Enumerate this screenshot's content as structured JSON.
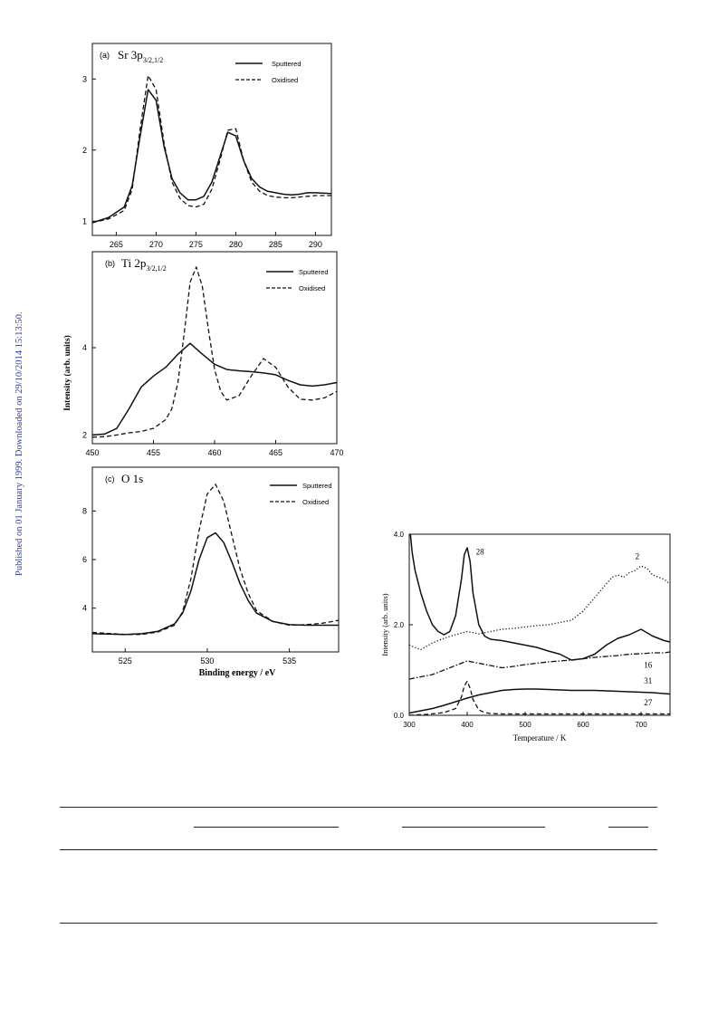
{
  "side_note": "Published on 01 January 1999. Downloaded on 29/10/2014 15:13:50.",
  "figure_left": {
    "shared_ylabel": "Intensity (arb. units)",
    "shared_xlabel": "Binding energy / eV",
    "panels": [
      {
        "label": "(a)",
        "title": "Sr 3p",
        "title_sub": "3/2,1/2",
        "legend": [
          "Sputtered",
          "Oxidised"
        ]
      },
      {
        "label": "(b)",
        "title": "Ti 2p",
        "title_sub": "3/2,1/2",
        "legend": [
          "Sputtered",
          "Oxidised"
        ]
      },
      {
        "label": "(c)",
        "title": "O 1s",
        "title_sub": "",
        "legend": [
          "Sputtered",
          "Oxidised"
        ]
      }
    ]
  },
  "figure_right": {
    "xlabel": "Temperature / K",
    "ylabel": "Intensity (arb. units)"
  },
  "chart_data": [
    {
      "type": "line",
      "panel": "(a)",
      "xlim": [
        262,
        292
      ],
      "ylim": [
        0.8,
        3.5
      ],
      "xticks": [
        265,
        270,
        275,
        280,
        285,
        290
      ],
      "yticks": [
        1,
        2,
        3
      ],
      "series": [
        {
          "name": "Sputtered",
          "style": "solid",
          "x": [
            262,
            264,
            266,
            267,
            268,
            269,
            270,
            271,
            272,
            273,
            274,
            275,
            276,
            277,
            278,
            279,
            280,
            281,
            282,
            283,
            284,
            285,
            286,
            287,
            288,
            289,
            290,
            292
          ],
          "y": [
            0.98,
            1.05,
            1.2,
            1.5,
            2.2,
            2.85,
            2.7,
            2.05,
            1.6,
            1.4,
            1.3,
            1.3,
            1.35,
            1.55,
            1.9,
            2.25,
            2.2,
            1.85,
            1.6,
            1.48,
            1.42,
            1.4,
            1.38,
            1.37,
            1.38,
            1.4,
            1.4,
            1.39
          ]
        },
        {
          "name": "Oxidised",
          "style": "dashed",
          "x": [
            262,
            264,
            266,
            267,
            268,
            269,
            270,
            271,
            272,
            273,
            274,
            275,
            276,
            277,
            278,
            279,
            280,
            281,
            282,
            283,
            284,
            285,
            286,
            287,
            288,
            289,
            290,
            292
          ],
          "y": [
            0.98,
            1.03,
            1.15,
            1.45,
            2.3,
            3.05,
            2.85,
            2.1,
            1.55,
            1.32,
            1.22,
            1.2,
            1.24,
            1.45,
            1.85,
            2.28,
            2.3,
            1.85,
            1.55,
            1.42,
            1.36,
            1.34,
            1.33,
            1.33,
            1.34,
            1.35,
            1.36,
            1.36
          ]
        }
      ]
    },
    {
      "type": "line",
      "panel": "(b)",
      "xlim": [
        450,
        470
      ],
      "ylim": [
        1.8,
        6.2
      ],
      "xticks": [
        450,
        455,
        460,
        465,
        470
      ],
      "yticks": [
        2,
        4
      ],
      "series": [
        {
          "name": "Sputtered",
          "style": "solid",
          "x": [
            450,
            451,
            452,
            453,
            454,
            455,
            456,
            457,
            458,
            459,
            460,
            461,
            462,
            463,
            464,
            465,
            466,
            467,
            468,
            469,
            470
          ],
          "y": [
            2.0,
            2.02,
            2.15,
            2.6,
            3.1,
            3.35,
            3.55,
            3.85,
            4.1,
            3.85,
            3.62,
            3.5,
            3.47,
            3.45,
            3.42,
            3.38,
            3.25,
            3.15,
            3.12,
            3.15,
            3.2
          ]
        },
        {
          "name": "Oxidised",
          "style": "dashed",
          "x": [
            450,
            451,
            452,
            453,
            454,
            455,
            456,
            456.5,
            457,
            457.5,
            458,
            458.5,
            459,
            459.5,
            460,
            460.5,
            461,
            462,
            463,
            464,
            465,
            466,
            467,
            468,
            469,
            470
          ],
          "y": [
            1.95,
            1.96,
            2.0,
            2.05,
            2.08,
            2.15,
            2.35,
            2.6,
            3.2,
            4.3,
            5.5,
            5.85,
            5.4,
            4.4,
            3.5,
            3.0,
            2.8,
            2.9,
            3.35,
            3.75,
            3.55,
            3.1,
            2.82,
            2.8,
            2.85,
            3.0
          ]
        }
      ]
    },
    {
      "type": "line",
      "panel": "(c)",
      "xlim": [
        523,
        538
      ],
      "ylim": [
        2.2,
        9.8
      ],
      "xticks": [
        525,
        530,
        535
      ],
      "yticks": [
        4,
        6,
        8
      ],
      "series": [
        {
          "name": "Sputtered",
          "style": "solid",
          "x": [
            523,
            525,
            526,
            527,
            528,
            528.5,
            529,
            529.5,
            530,
            530.5,
            531,
            531.5,
            532,
            532.5,
            533,
            534,
            535,
            536,
            537,
            538
          ],
          "y": [
            2.95,
            2.92,
            2.95,
            3.05,
            3.35,
            3.8,
            4.7,
            6.0,
            6.9,
            7.1,
            6.7,
            5.9,
            5.0,
            4.3,
            3.8,
            3.45,
            3.32,
            3.3,
            3.3,
            3.3
          ]
        },
        {
          "name": "Oxidised",
          "style": "dashed",
          "x": [
            523,
            525,
            526,
            527,
            528,
            528.5,
            529,
            529.5,
            530,
            530.5,
            531,
            531.5,
            532,
            532.5,
            533,
            534,
            535,
            536,
            537,
            538
          ],
          "y": [
            3.0,
            2.92,
            2.92,
            3.02,
            3.3,
            3.85,
            5.2,
            7.2,
            8.7,
            9.1,
            8.4,
            7.0,
            5.6,
            4.6,
            3.9,
            3.45,
            3.3,
            3.32,
            3.38,
            3.5
          ]
        }
      ]
    },
    {
      "type": "line",
      "panel": "TPD",
      "xlim": [
        300,
        750
      ],
      "ylim": [
        0,
        4.0
      ],
      "xticks": [
        300,
        400,
        500,
        600,
        700
      ],
      "yticks": [
        0.0,
        2.0,
        4.0
      ],
      "ytick_labels": [
        "0.0",
        "2.0",
        "4.0"
      ],
      "series": [
        {
          "name": "28",
          "style": "solid",
          "x": [
            302,
            305,
            310,
            320,
            330,
            340,
            350,
            360,
            370,
            380,
            390,
            395,
            400,
            405,
            410,
            420,
            430,
            440,
            460,
            480,
            500,
            520,
            540,
            560,
            580,
            600,
            620,
            640,
            660,
            680,
            700,
            720,
            740,
            750
          ],
          "y": [
            4.0,
            3.6,
            3.2,
            2.7,
            2.3,
            2.0,
            1.85,
            1.78,
            1.85,
            2.2,
            3.0,
            3.55,
            3.7,
            3.4,
            2.7,
            2.0,
            1.75,
            1.68,
            1.65,
            1.6,
            1.55,
            1.5,
            1.42,
            1.35,
            1.22,
            1.25,
            1.35,
            1.55,
            1.7,
            1.78,
            1.9,
            1.75,
            1.65,
            1.62
          ]
        },
        {
          "name": "2",
          "style": "dotted",
          "x": [
            300,
            320,
            340,
            360,
            380,
            400,
            420,
            440,
            460,
            480,
            500,
            520,
            540,
            560,
            580,
            600,
            620,
            640,
            650,
            660,
            670,
            680,
            690,
            700,
            710,
            720,
            730,
            740,
            750
          ],
          "y": [
            1.55,
            1.45,
            1.6,
            1.7,
            1.78,
            1.85,
            1.8,
            1.85,
            1.9,
            1.92,
            1.95,
            1.98,
            2.0,
            2.05,
            2.1,
            2.3,
            2.6,
            2.9,
            3.05,
            3.1,
            3.05,
            3.15,
            3.2,
            3.3,
            3.25,
            3.1,
            3.05,
            3.0,
            2.9
          ]
        },
        {
          "name": "16",
          "style": "dashdot",
          "x": [
            300,
            320,
            340,
            360,
            380,
            400,
            420,
            440,
            460,
            480,
            500,
            520,
            540,
            560,
            580,
            600,
            620,
            640,
            660,
            680,
            700,
            720,
            740,
            750
          ],
          "y": [
            0.8,
            0.85,
            0.9,
            1.0,
            1.1,
            1.2,
            1.15,
            1.1,
            1.05,
            1.08,
            1.12,
            1.15,
            1.18,
            1.2,
            1.22,
            1.25,
            1.28,
            1.3,
            1.32,
            1.35,
            1.36,
            1.38,
            1.38,
            1.4
          ]
        },
        {
          "name": "31",
          "style": "solid",
          "x": [
            300,
            320,
            340,
            360,
            380,
            400,
            420,
            440,
            460,
            480,
            500,
            520,
            540,
            560,
            580,
            600,
            620,
            640,
            660,
            680,
            700,
            720,
            740,
            750
          ],
          "y": [
            0.05,
            0.1,
            0.15,
            0.22,
            0.3,
            0.38,
            0.45,
            0.5,
            0.55,
            0.57,
            0.58,
            0.58,
            0.57,
            0.56,
            0.55,
            0.55,
            0.55,
            0.54,
            0.53,
            0.52,
            0.51,
            0.5,
            0.48,
            0.47
          ]
        },
        {
          "name": "27",
          "style": "dashed",
          "x": [
            300,
            330,
            360,
            380,
            390,
            395,
            400,
            405,
            410,
            420,
            430,
            440,
            460,
            500,
            550,
            600,
            650,
            700,
            750
          ],
          "y": [
            0.0,
            0.02,
            0.06,
            0.15,
            0.4,
            0.65,
            0.75,
            0.6,
            0.35,
            0.12,
            0.06,
            0.04,
            0.03,
            0.03,
            0.03,
            0.03,
            0.03,
            0.03,
            0.03
          ]
        }
      ]
    }
  ]
}
